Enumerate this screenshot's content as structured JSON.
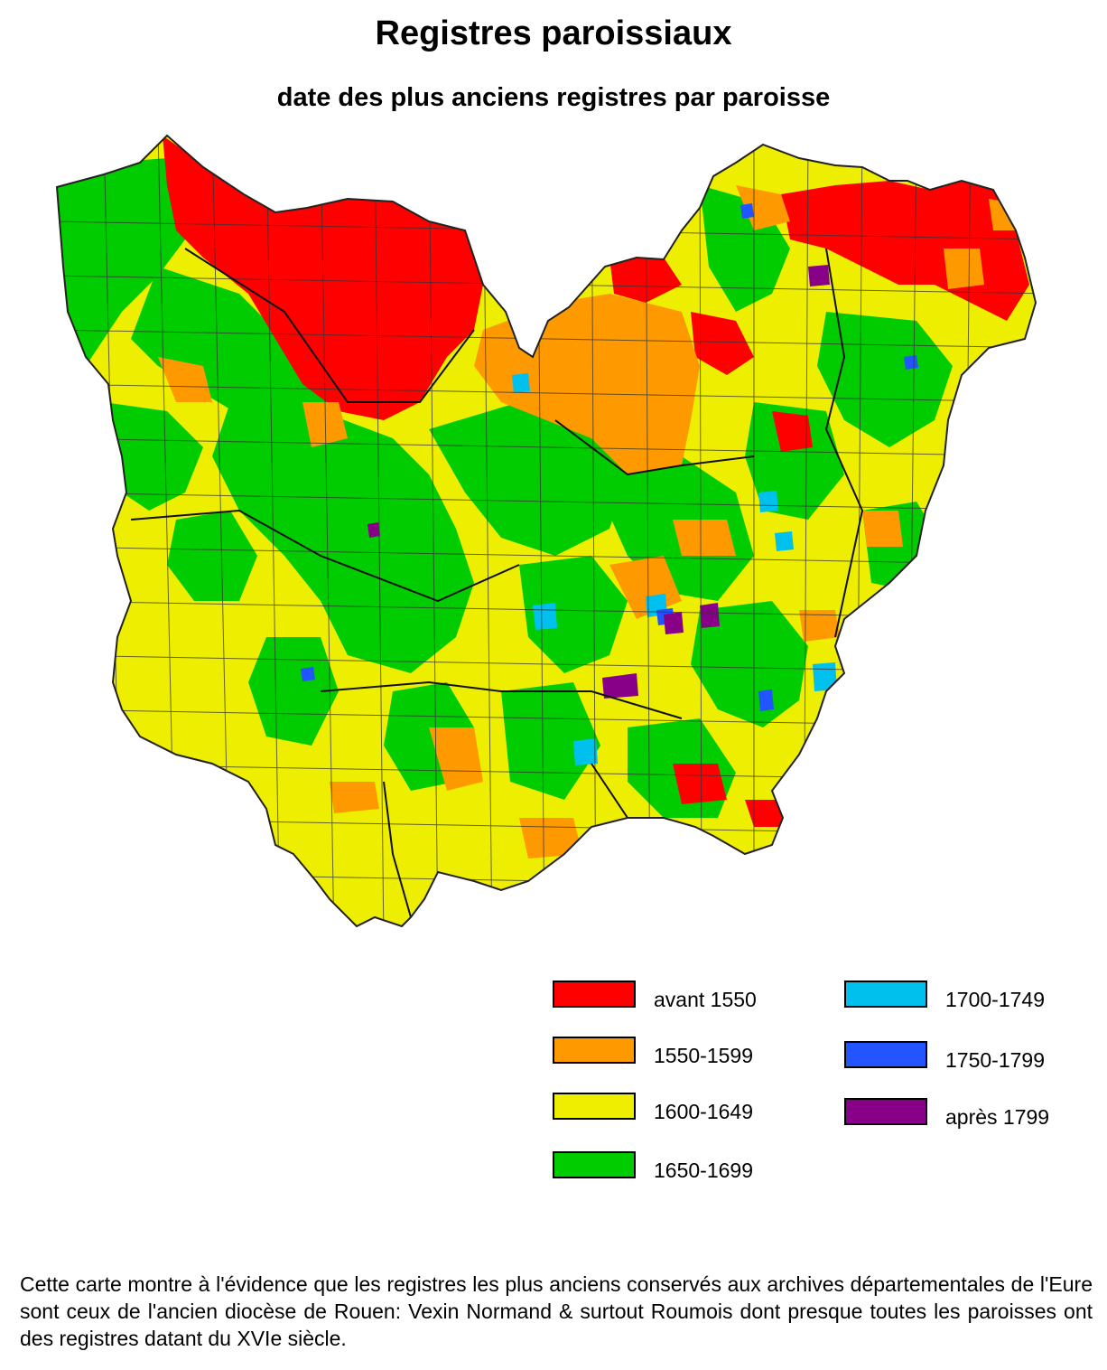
{
  "title": "Registres paroissiaux",
  "subtitle": "date des plus anciens registres par paroisse",
  "legend": {
    "items": [
      {
        "label": "avant 1550",
        "color": "#ff0000"
      },
      {
        "label": "1550-1599",
        "color": "#ff9900"
      },
      {
        "label": "1600-1649",
        "color": "#eeee00"
      },
      {
        "label": "1650-1699",
        "color": "#00cc00"
      },
      {
        "label": "1700-1749",
        "color": "#00c0ee"
      },
      {
        "label": "1750-1799",
        "color": "#2255ff"
      },
      {
        "label": "après 1799",
        "color": "#880088"
      }
    ]
  },
  "caption": "Cette carte montre à l'évidence que les registres les plus anciens conservés aux archives départementales de l'Eure sont ceux de l'ancien diocèse de Rouen: Vexin Normand & surtout Roumois dont presque toutes les paroisses ont des registres datant du XVIe siècle.",
  "map": {
    "colors": {
      "red": "#ff0000",
      "orange": "#ff9900",
      "yellow": "#eeee00",
      "green": "#00cc00",
      "cyan": "#00c0ee",
      "blue": "#2255ff",
      "purple": "#880088"
    }
  }
}
